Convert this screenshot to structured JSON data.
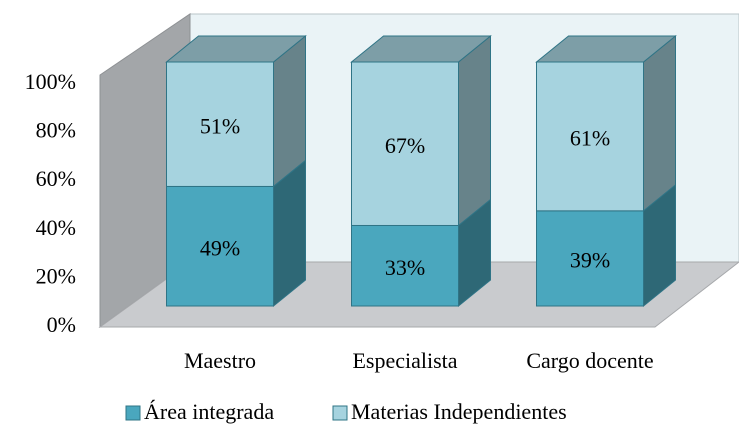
{
  "chart_data": {
    "type": "bar3d_stacked",
    "categories": [
      "Maestro",
      "Especialista",
      "Cargo docente"
    ],
    "series": [
      {
        "name": "Área integrada",
        "color": "#4aa7be",
        "values": [
          49,
          33,
          39
        ],
        "value_labels": [
          "49%",
          "33%",
          "39%"
        ]
      },
      {
        "name": "Materias Independientes",
        "color": "#a6d3df",
        "values": [
          51,
          67,
          61
        ],
        "value_labels": [
          "51%",
          "67%",
          "61%"
        ]
      }
    ],
    "ylim": [
      0,
      100
    ],
    "yticks": [
      {
        "value": 0,
        "label": "0%"
      },
      {
        "value": 20,
        "label": "20%"
      },
      {
        "value": 40,
        "label": "40%"
      },
      {
        "value": 60,
        "label": "60%"
      },
      {
        "value": 80,
        "label": "80%"
      },
      {
        "value": 100,
        "label": "100%"
      }
    ],
    "legend": "bottom"
  }
}
